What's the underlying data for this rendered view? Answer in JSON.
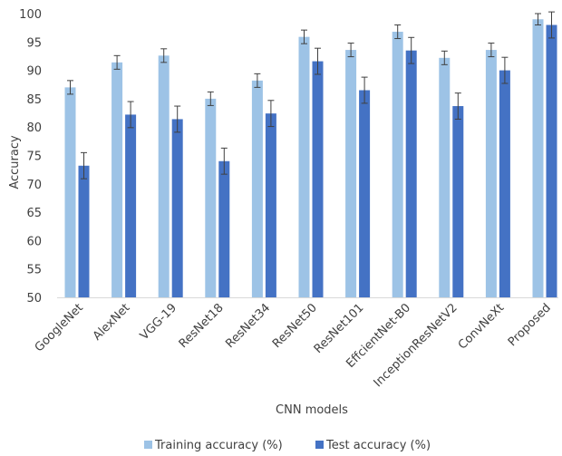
{
  "chart_data": {
    "type": "bar",
    "title": "",
    "xlabel": "CNN models",
    "ylabel": "Accuracy",
    "ylim": [
      50,
      100
    ],
    "yticks": [
      50,
      55,
      60,
      65,
      70,
      75,
      80,
      85,
      90,
      95,
      100
    ],
    "grid": false,
    "legend_position": "bottom",
    "categories": [
      "GoogleNet",
      "AlexNet",
      "VGG-19",
      "ResNet18",
      "ResNet34",
      "ResNet50",
      "ResNet101",
      "EffcientNet-B0",
      "InceptionResNetV2",
      "ConvNeXt",
      "Proposed"
    ],
    "series": [
      {
        "name": "Training accuracy (%)",
        "color": "#9DC3E6",
        "values": [
          87.0,
          91.4,
          92.6,
          85.0,
          88.2,
          95.9,
          93.6,
          96.8,
          92.2,
          93.6,
          99.0
        ],
        "errors": [
          1.2,
          1.2,
          1.2,
          1.2,
          1.2,
          1.2,
          1.2,
          1.2,
          1.2,
          1.2,
          1.0
        ]
      },
      {
        "name": "Test accuracy (%)",
        "color": "#4472C4",
        "values": [
          73.2,
          82.2,
          81.4,
          74.0,
          82.4,
          91.6,
          86.5,
          93.5,
          83.7,
          90.0,
          98.0
        ],
        "errors": [
          2.3,
          2.3,
          2.3,
          2.3,
          2.3,
          2.3,
          2.3,
          2.3,
          2.3,
          2.3,
          2.3
        ]
      }
    ]
  }
}
